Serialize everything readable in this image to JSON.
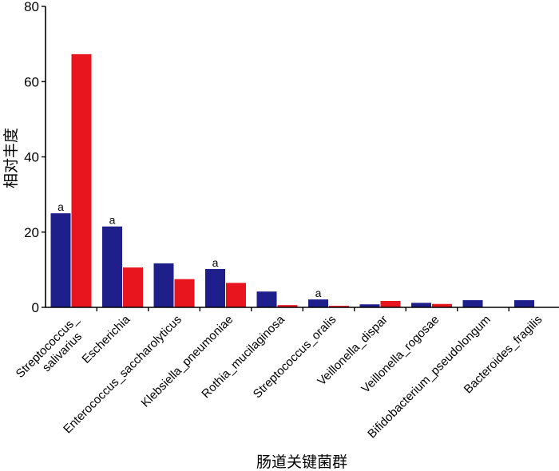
{
  "chart_data": {
    "type": "bar",
    "title": "",
    "xlabel": "肠道关键菌群",
    "ylabel": "相对丰度",
    "ylim": [
      0,
      80
    ],
    "yticks": [
      0,
      20,
      40,
      60,
      80
    ],
    "grid": false,
    "legend": "none",
    "categories": [
      "Streptococcus_ salivarius",
      "Escherichia",
      "Enterococcus_saccharolyticus",
      "Klebsiella_pneumoniae",
      "Rothia_mucilaginosa",
      "Streptococcus_oralis",
      "Veillonella_dispar",
      "Veillonella_rogosae",
      "Bifidobacterium_pseudolongum",
      "Bacteroides_fragilis"
    ],
    "series": [
      {
        "color": "#1f1f8c",
        "values": [
          25,
          21.5,
          11.7,
          10.2,
          4.2,
          2.1,
          0.8,
          1.2,
          1.9,
          1.9
        ]
      },
      {
        "color": "#e8141e",
        "values": [
          67.3,
          10.6,
          7.5,
          6.5,
          0.6,
          0.4,
          1.7,
          0.9,
          0,
          0
        ]
      }
    ],
    "annotations": [
      {
        "category_index": 0,
        "series_index": 0,
        "text": "a"
      },
      {
        "category_index": 1,
        "series_index": 0,
        "text": "a"
      },
      {
        "category_index": 3,
        "series_index": 0,
        "text": "a"
      },
      {
        "category_index": 5,
        "series_index": 0,
        "text": "a"
      }
    ]
  }
}
